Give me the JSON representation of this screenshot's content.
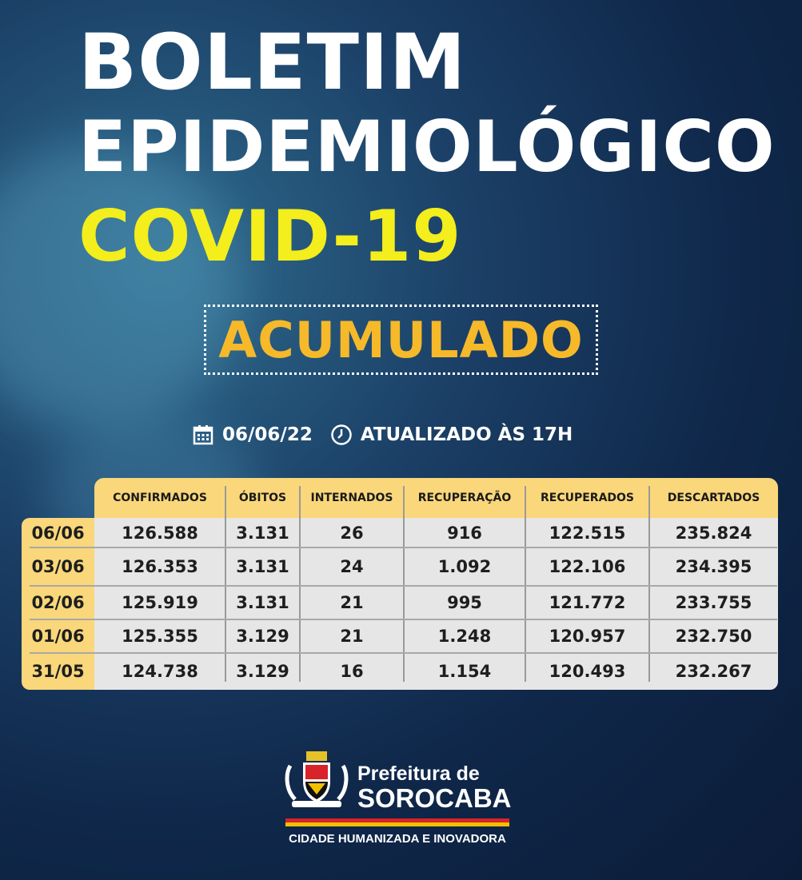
{
  "title": {
    "line1": "BOLETIM",
    "line2": "EPIDEMIOLÓGICO",
    "line3": "COVID-19"
  },
  "badge": "ACUMULADO",
  "info": {
    "date": "06/06/22",
    "updated": "ATUALIZADO ÀS 17H",
    "icons": [
      "calendar-icon",
      "clock-icon"
    ]
  },
  "table": {
    "headers": [
      "CONFIRMADOS",
      "ÓBITOS",
      "INTERNADOS",
      "RECUPERAÇÃO",
      "RECUPERADOS",
      "DESCARTADOS"
    ],
    "rows": [
      {
        "date": "06/06",
        "values": [
          "126.588",
          "3.131",
          "26",
          "916",
          "122.515",
          "235.824"
        ]
      },
      {
        "date": "03/06",
        "values": [
          "126.353",
          "3.131",
          "24",
          "1.092",
          "122.106",
          "234.395"
        ]
      },
      {
        "date": "02/06",
        "values": [
          "125.919",
          "3.131",
          "21",
          "995",
          "121.772",
          "233.755"
        ]
      },
      {
        "date": "01/06",
        "values": [
          "125.355",
          "3.129",
          "21",
          "1.248",
          "120.957",
          "232.750"
        ]
      },
      {
        "date": "31/05",
        "values": [
          "124.738",
          "3.129",
          "16",
          "1.154",
          "120.493",
          "232.267"
        ]
      }
    ]
  },
  "footer": {
    "line1": "Prefeitura de",
    "line2": "SOROCABA",
    "tagline": "CIDADE HUMANIZADA E INOVADORA"
  },
  "colors": {
    "yellow_title": "#f3ee1c",
    "badge_text": "#f6b92a",
    "table_header": "#f9d77a",
    "table_body": "#e6e6e6"
  }
}
